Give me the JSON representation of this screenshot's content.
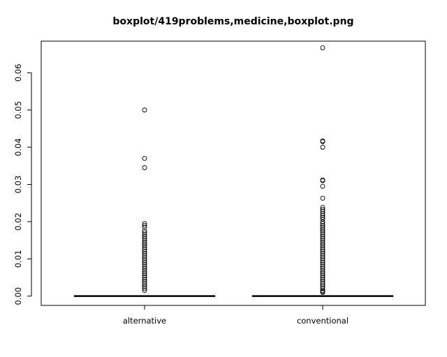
{
  "chart_data": {
    "type": "boxplot",
    "title": "boxplot/419problems,medicine,boxplot.png",
    "xlabel": "",
    "ylabel": "",
    "categories": [
      "alternative",
      "conventional"
    ],
    "ylim": [
      -0.0025,
      0.0685
    ],
    "yticks": [
      0.0,
      0.01,
      0.02,
      0.03,
      0.04,
      0.05,
      0.06
    ],
    "ytick_labels": [
      "0.00",
      "0.01",
      "0.02",
      "0.03",
      "0.04",
      "0.05",
      "0.06"
    ],
    "grid": false,
    "legend": "none",
    "series": [
      {
        "category": "alternative",
        "box": {
          "min": 0.0,
          "q1": 0.0,
          "median": 0.0,
          "q3": 0.0,
          "max": 0.0
        },
        "outliers": [
          0.05,
          0.037,
          0.0345,
          0.0195,
          0.019,
          0.0185,
          0.0175,
          0.017,
          0.0165,
          0.016,
          0.0155,
          0.015,
          0.0145,
          0.014,
          0.0135,
          0.013,
          0.0125,
          0.012,
          0.0115,
          0.011,
          0.0105,
          0.01,
          0.0095,
          0.009,
          0.0085,
          0.008,
          0.0075,
          0.007,
          0.0065,
          0.006,
          0.0055,
          0.005,
          0.0045,
          0.004,
          0.0035,
          0.003,
          0.0025,
          0.002,
          0.0015
        ]
      },
      {
        "category": "conventional",
        "box": {
          "min": 0.0,
          "q1": 0.0,
          "median": 0.0,
          "q3": 0.0,
          "max": 0.0
        },
        "outliers": [
          0.0667,
          0.0417,
          0.0415,
          0.04,
          0.0312,
          0.031,
          0.0295,
          0.0263,
          0.0238,
          0.0233,
          0.0228,
          0.0222,
          0.0217,
          0.0212,
          0.0207,
          0.02,
          0.0195,
          0.019,
          0.0185,
          0.018,
          0.0175,
          0.017,
          0.0165,
          0.016,
          0.0155,
          0.015,
          0.0145,
          0.014,
          0.0135,
          0.013,
          0.0125,
          0.012,
          0.0115,
          0.011,
          0.0105,
          0.01,
          0.0095,
          0.009,
          0.0085,
          0.008,
          0.0075,
          0.007,
          0.0065,
          0.006,
          0.0055,
          0.005,
          0.0045,
          0.004,
          0.0035,
          0.003,
          0.0025,
          0.002,
          0.0015,
          0.0012,
          0.001
        ]
      }
    ]
  },
  "colors": {
    "axis": "#000000",
    "box": "#000000",
    "outlier_stroke": "#000000",
    "background": "#ffffff"
  }
}
